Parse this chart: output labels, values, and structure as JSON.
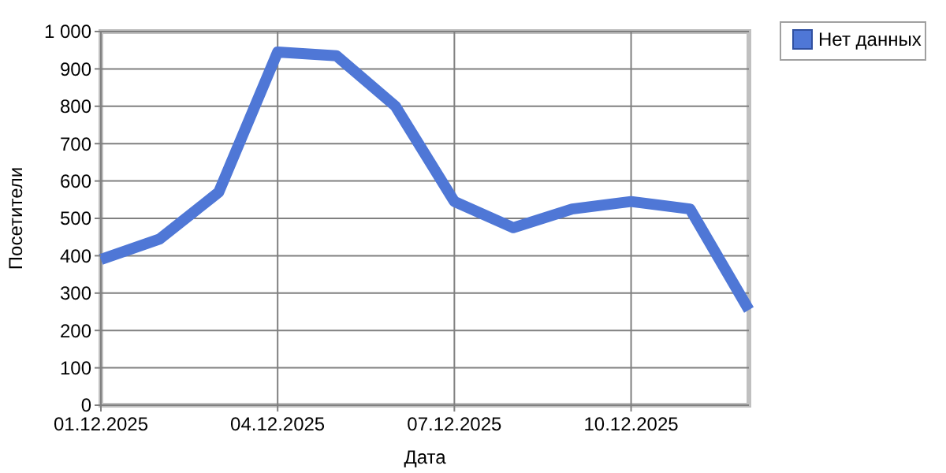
{
  "chart_data": {
    "type": "line",
    "xlabel": "Дата",
    "ylabel": "Посетители",
    "x": [
      "2025-12-01",
      "2025-12-02",
      "2025-12-03",
      "2025-12-04",
      "2025-12-05",
      "2025-12-06",
      "2025-12-07",
      "2025-12-08",
      "2025-12-09",
      "2025-12-10",
      "2025-12-11",
      "2025-12-12"
    ],
    "series": [
      {
        "name": "Нет данных",
        "color": "#4f77d6",
        "values": [
          390,
          445,
          570,
          945,
          935,
          800,
          545,
          475,
          525,
          545,
          525,
          255
        ]
      }
    ],
    "xlim": [
      "2025-12-01",
      "2025-12-12"
    ],
    "xticks": [
      {
        "value": "2025-12-01",
        "label": "01.12.2025"
      },
      {
        "value": "2025-12-04",
        "label": "04.12.2025"
      },
      {
        "value": "2025-12-07",
        "label": "07.12.2025"
      },
      {
        "value": "2025-12-10",
        "label": "10.12.2025"
      }
    ],
    "ylim": [
      0,
      1000
    ],
    "yticks": [
      0,
      100,
      200,
      300,
      400,
      500,
      600,
      700,
      800,
      900,
      {
        "value": 1000,
        "label": "1 000"
      }
    ],
    "grid": true,
    "legend": "top right",
    "marker": "none",
    "line_style": "solid"
  }
}
